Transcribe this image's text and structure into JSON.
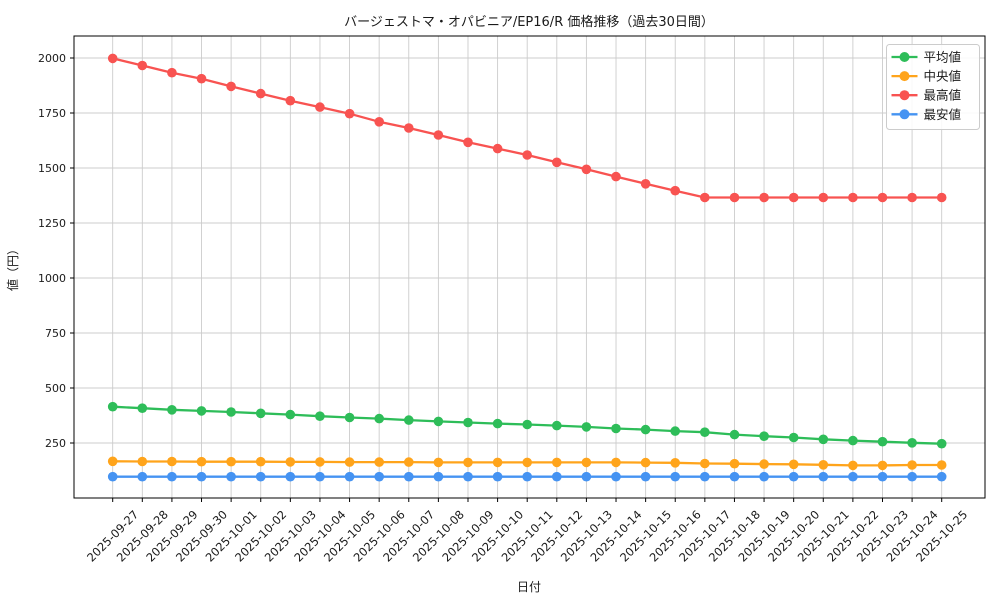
{
  "chart_data": {
    "type": "line",
    "title": "バージェストマ・オパビニア/EP16/R 価格推移（過去30日間）",
    "xlabel": "日付",
    "ylabel": "値（円）",
    "x": [
      "2025-09-27",
      "2025-09-28",
      "2025-09-29",
      "2025-09-30",
      "2025-10-01",
      "2025-10-02",
      "2025-10-03",
      "2025-10-04",
      "2025-10-05",
      "2025-10-06",
      "2025-10-07",
      "2025-10-08",
      "2025-10-09",
      "2025-10-10",
      "2025-10-11",
      "2025-10-12",
      "2025-10-13",
      "2025-10-14",
      "2025-10-15",
      "2025-10-16",
      "2025-10-17",
      "2025-10-18",
      "2025-10-19",
      "2025-10-20",
      "2025-10-21",
      "2025-10-22",
      "2025-10-23",
      "2025-10-24",
      "2025-10-25"
    ],
    "series": [
      {
        "key": "average",
        "name": "平均値",
        "color": "#2ebd59",
        "values": [
          415,
          408,
          401,
          396,
          391,
          385,
          379,
          372,
          366,
          361,
          354,
          348,
          343,
          338,
          334,
          329,
          323,
          316,
          311,
          304,
          299,
          288,
          281,
          275,
          267,
          261,
          256,
          251,
          247
        ]
      },
      {
        "key": "median",
        "name": "中央値",
        "color": "#ffa41b",
        "values": [
          167,
          166,
          166,
          165,
          165,
          165,
          164,
          164,
          163,
          163,
          163,
          162,
          162,
          162,
          162,
          162,
          162,
          162,
          161,
          160,
          157,
          156,
          154,
          153,
          151,
          148,
          148,
          150,
          150
        ]
      },
      {
        "key": "max",
        "name": "最高値",
        "color": "#f85351",
        "values": [
          1998,
          1966,
          1933,
          1906,
          1871,
          1838,
          1806,
          1777,
          1747,
          1710,
          1682,
          1650,
          1617,
          1588,
          1559,
          1526,
          1494,
          1461,
          1428,
          1397,
          1366,
          1366,
          1366,
          1366,
          1366,
          1366,
          1366,
          1366,
          1366
        ]
      },
      {
        "key": "min",
        "name": "最安値",
        "color": "#4593f2",
        "values": [
          97,
          97,
          97,
          97,
          97,
          97,
          97,
          97,
          97,
          97,
          97,
          97,
          97,
          97,
          97,
          97,
          97,
          97,
          97,
          97,
          97,
          97,
          97,
          97,
          97,
          97,
          97,
          97,
          97
        ]
      }
    ],
    "yticks": [
      250,
      500,
      750,
      1000,
      1250,
      1500,
      1750,
      2000
    ],
    "ylim": [
      0,
      2100
    ],
    "grid": true,
    "legend_position": "upper right",
    "colors": {
      "grid": "#cccccc",
      "axis": "#000000",
      "legend_border": "#cccccc",
      "background": "#ffffff"
    }
  }
}
